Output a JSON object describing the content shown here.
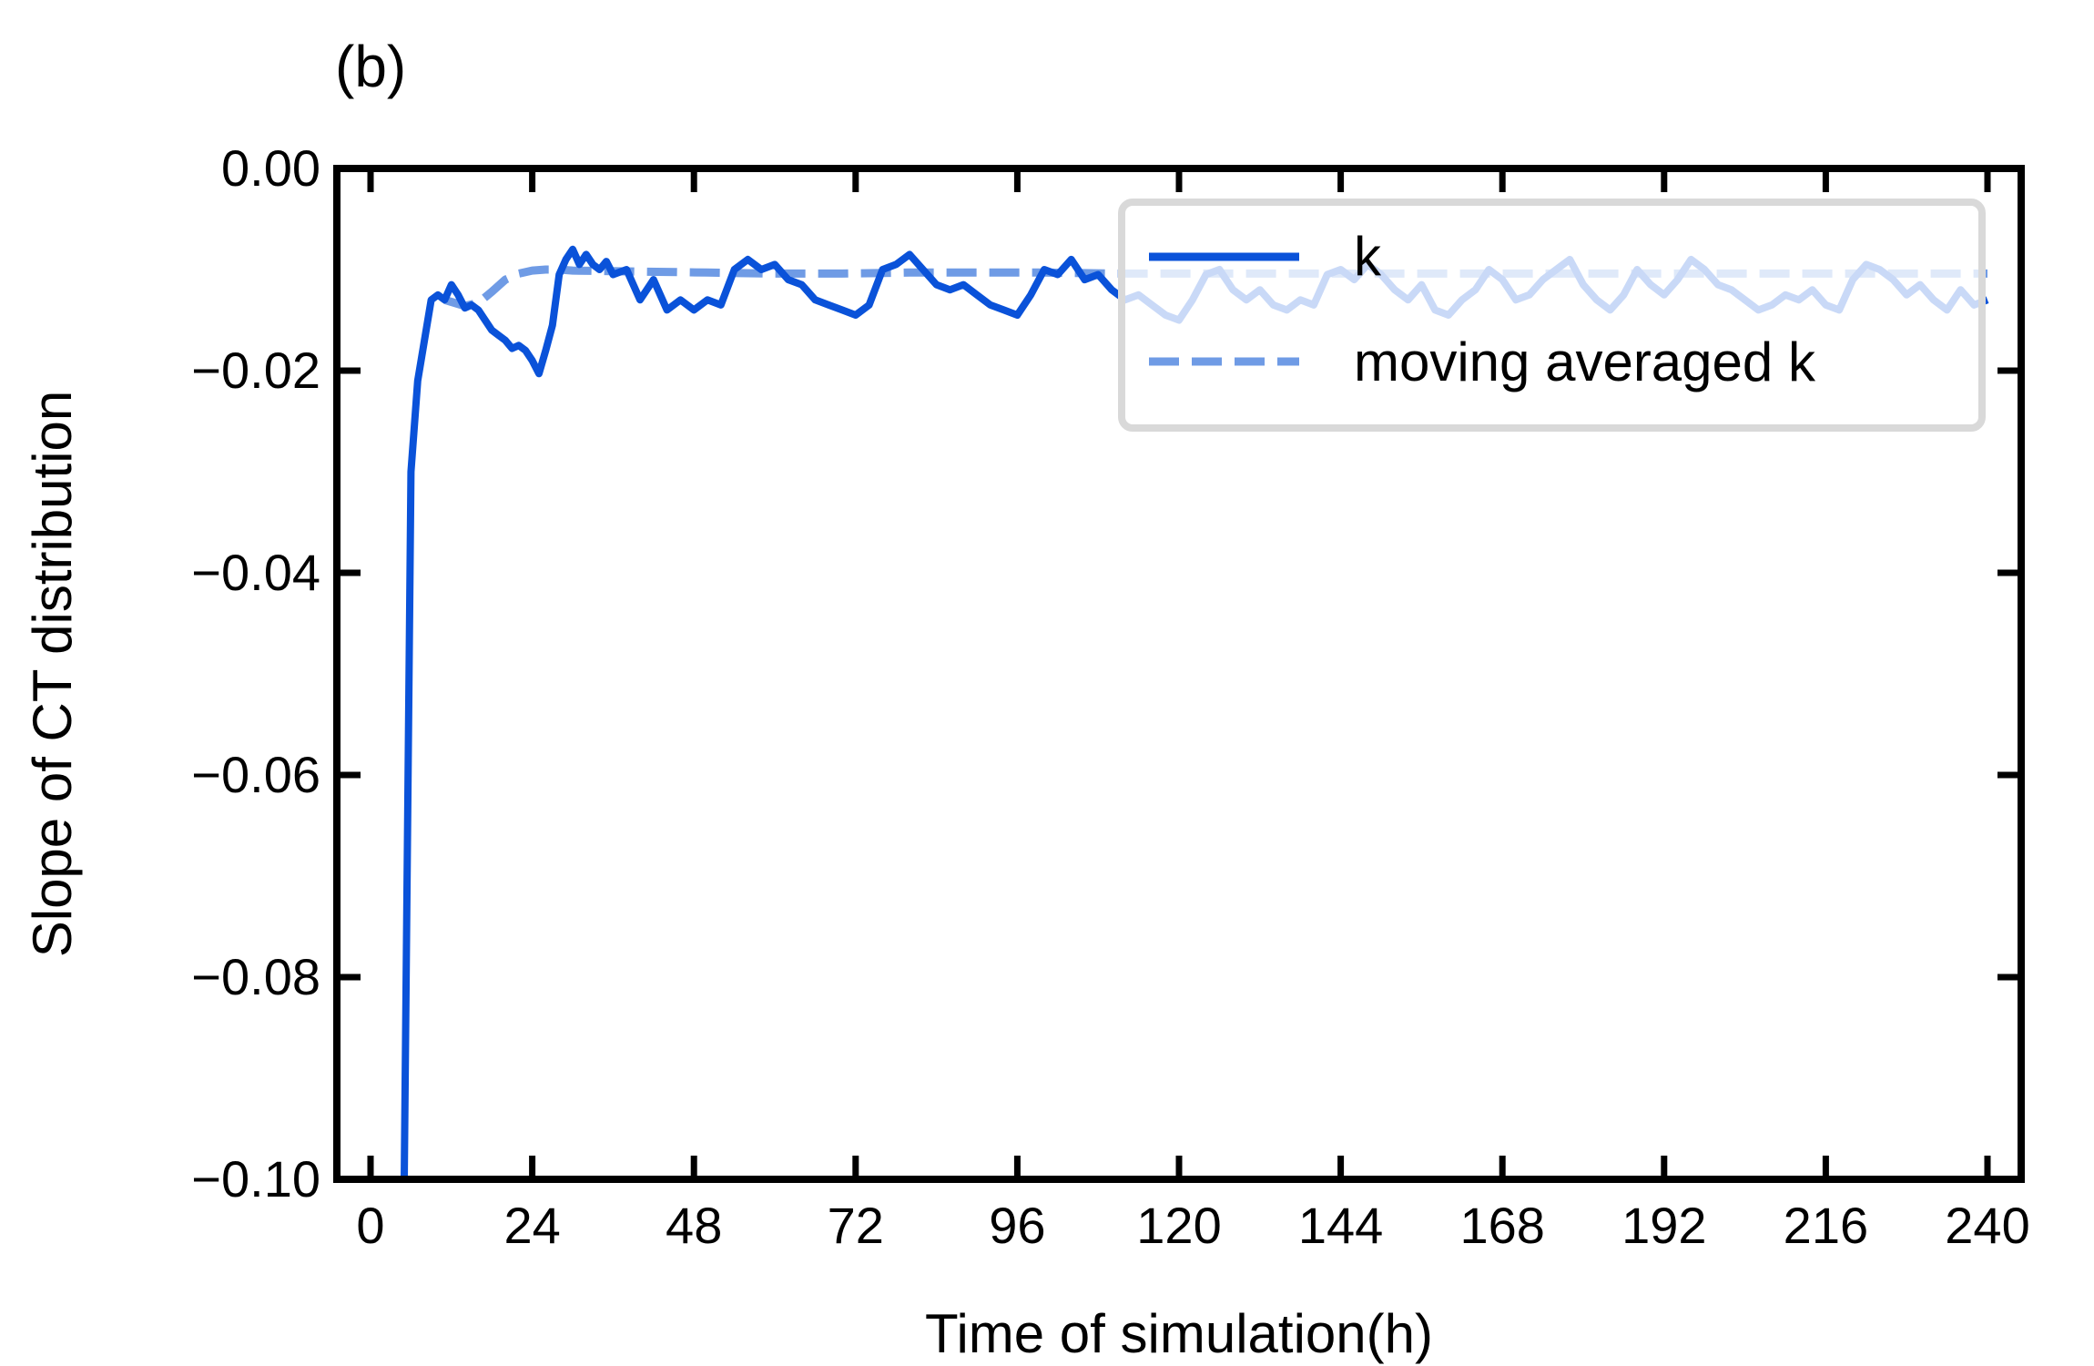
{
  "chart_data": {
    "type": "line",
    "panel_label": "(b)",
    "title": "",
    "xlabel": "Time of simulation(h)",
    "ylabel": "Slope of CT distribution",
    "xlim": [
      -5,
      245
    ],
    "ylim": [
      -0.1,
      0.0
    ],
    "xticks": [
      0,
      24,
      48,
      72,
      96,
      120,
      144,
      168,
      192,
      216,
      240
    ],
    "xtick_labels": [
      "0",
      "24",
      "48",
      "72",
      "96",
      "120",
      "144",
      "168",
      "192",
      "216",
      "240"
    ],
    "yticks": [
      0.0,
      -0.02,
      -0.04,
      -0.06,
      -0.08,
      -0.1
    ],
    "ytick_labels": [
      "0.00",
      "−0.02",
      "−0.04",
      "−0.06",
      "−0.08",
      "−0.10"
    ],
    "grid": false,
    "legend_position": "top-right",
    "colors": {
      "k": "#0a52d9",
      "moving_avg": "#6f9be5",
      "frame": "#000000",
      "legend_border": "#d9d9d9"
    },
    "series": [
      {
        "name": "k",
        "style": "solid",
        "x": [
          5,
          6,
          7,
          8,
          9,
          10,
          11,
          12,
          13,
          14,
          15,
          16,
          17,
          18,
          19,
          20,
          21,
          22,
          23,
          24,
          25,
          26,
          27,
          28,
          29,
          30,
          31,
          32,
          33,
          34,
          35,
          36,
          38,
          40,
          42,
          44,
          46,
          48,
          50,
          52,
          54,
          56,
          58,
          60,
          62,
          64,
          66,
          68,
          70,
          72,
          74,
          76,
          78,
          80,
          82,
          84,
          86,
          88,
          90,
          92,
          94,
          96,
          98,
          100,
          102,
          104,
          106,
          108,
          110,
          112,
          114,
          116,
          118,
          120,
          122,
          124,
          126,
          128,
          130,
          132,
          134,
          136,
          138,
          140,
          142,
          144,
          146,
          148,
          150,
          152,
          154,
          156,
          158,
          160,
          162,
          164,
          166,
          168,
          170,
          172,
          174,
          176,
          178,
          180,
          182,
          184,
          186,
          188,
          190,
          192,
          194,
          196,
          198,
          200,
          202,
          204,
          206,
          208,
          210,
          212,
          214,
          216,
          218,
          220,
          222,
          224,
          226,
          228,
          230,
          232,
          234,
          236,
          238,
          240
        ],
        "values": [
          -0.1,
          -0.03,
          -0.021,
          -0.017,
          -0.013,
          -0.0125,
          -0.013,
          -0.0115,
          -0.0125,
          -0.0138,
          -0.0135,
          -0.014,
          -0.015,
          -0.016,
          -0.0165,
          -0.017,
          -0.0178,
          -0.0175,
          -0.018,
          -0.019,
          -0.0203,
          -0.018,
          -0.0155,
          -0.0105,
          -0.009,
          -0.008,
          -0.0095,
          -0.0085,
          -0.0095,
          -0.01,
          -0.0092,
          -0.0105,
          -0.01,
          -0.013,
          -0.011,
          -0.014,
          -0.013,
          -0.014,
          -0.013,
          -0.0135,
          -0.01,
          -0.009,
          -0.01,
          -0.0095,
          -0.011,
          -0.0115,
          -0.013,
          -0.0135,
          -0.014,
          -0.0145,
          -0.0135,
          -0.01,
          -0.0095,
          -0.0085,
          -0.01,
          -0.0115,
          -0.012,
          -0.0115,
          -0.0125,
          -0.0135,
          -0.014,
          -0.0145,
          -0.0125,
          -0.01,
          -0.0105,
          -0.009,
          -0.011,
          -0.0105,
          -0.012,
          -0.013,
          -0.0125,
          -0.0135,
          -0.0145,
          -0.015,
          -0.013,
          -0.0105,
          -0.01,
          -0.012,
          -0.013,
          -0.012,
          -0.0135,
          -0.014,
          -0.013,
          -0.0135,
          -0.0105,
          -0.01,
          -0.011,
          -0.0095,
          -0.0105,
          -0.012,
          -0.013,
          -0.0115,
          -0.014,
          -0.0145,
          -0.013,
          -0.012,
          -0.01,
          -0.011,
          -0.013,
          -0.0125,
          -0.011,
          -0.01,
          -0.009,
          -0.0115,
          -0.013,
          -0.014,
          -0.0125,
          -0.01,
          -0.0115,
          -0.0125,
          -0.011,
          -0.009,
          -0.01,
          -0.0115,
          -0.012,
          -0.013,
          -0.014,
          -0.0135,
          -0.0125,
          -0.013,
          -0.012,
          -0.0135,
          -0.014,
          -0.011,
          -0.0095,
          -0.01,
          -0.011,
          -0.0125,
          -0.0115,
          -0.013,
          -0.014,
          -0.012,
          -0.0135,
          -0.013
        ]
      },
      {
        "name": "moving averaged k",
        "style": "dashed",
        "x": [
          11,
          12,
          14,
          16,
          18,
          20,
          22,
          24,
          26,
          28,
          30,
          40,
          50,
          60,
          70,
          80,
          90,
          100,
          110,
          120,
          130,
          140,
          150,
          160,
          170,
          180,
          190,
          200,
          210,
          220,
          230,
          240
        ],
        "values": [
          -0.013,
          -0.0132,
          -0.0136,
          -0.0133,
          -0.0122,
          -0.011,
          -0.0104,
          -0.0101,
          -0.01,
          -0.01,
          -0.0101,
          -0.0102,
          -0.0103,
          -0.0104,
          -0.0104,
          -0.0103,
          -0.0103,
          -0.0103,
          -0.0104,
          -0.0104,
          -0.0104,
          -0.0104,
          -0.0104,
          -0.0104,
          -0.0104,
          -0.0104,
          -0.0104,
          -0.0104,
          -0.0104,
          -0.0104,
          -0.0104,
          -0.0104
        ]
      }
    ]
  }
}
